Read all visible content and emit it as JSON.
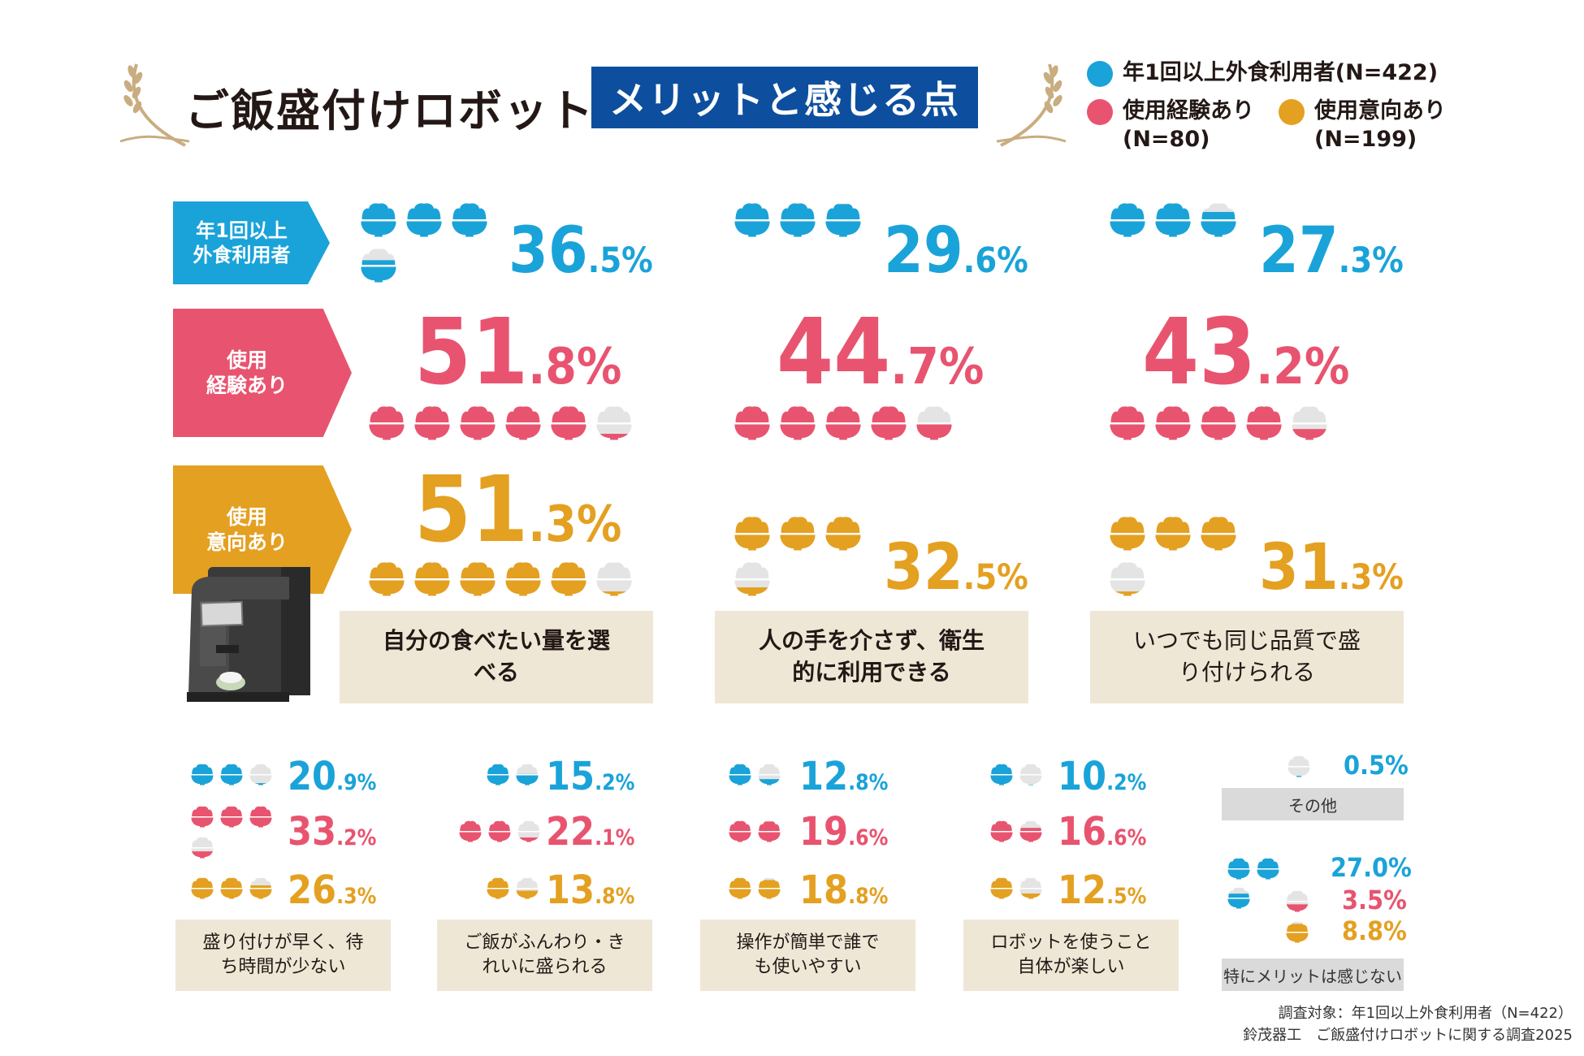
{
  "title": "ご飯盛付けロボット",
  "subtitle": "メリットと感じる点",
  "legend": [
    {
      "label": "年1回以上外食利用者(N=422)",
      "color": "#1aa3d9"
    },
    {
      "label": "使用経験あり",
      "n": "(N=80)",
      "color": "#e8546f"
    },
    {
      "label": "使用意向あり",
      "n": "(N=199)",
      "color": "#e4a021"
    }
  ],
  "row_labels": {
    "blue": "年1回以上\n外食利用者",
    "red": "使用\n経験あり",
    "gold": "使用\n意向あり"
  },
  "colors": {
    "blue": "#1aa3d9",
    "red": "#e8546f",
    "gold": "#e4a021",
    "empty": "#e4e4e4"
  },
  "chart_data": {
    "type": "pictogram",
    "title": "ご飯盛付けロボット メリットと感じる点",
    "unit": "%",
    "icon_value": 10,
    "series_names": [
      "年1回以上外食利用者(N=422)",
      "使用経験あり(N=80)",
      "使用意向あり(N=199)"
    ],
    "top_items": [
      {
        "category": "自分の食べたい量を選べる",
        "blue": {
          "int": "36",
          "dec": ".5%",
          "value": 36.5
        },
        "red": {
          "int": "51",
          "dec": ".8%",
          "value": 51.8
        },
        "gold": {
          "int": "51",
          "dec": ".3%",
          "value": 51.3
        }
      },
      {
        "category": "人の手を介さず、衛生的に利用できる",
        "blue": {
          "int": "29",
          "dec": ".6%",
          "value": 29.6
        },
        "red": {
          "int": "44",
          "dec": ".7%",
          "value": 44.7
        },
        "gold": {
          "int": "32",
          "dec": ".5%",
          "value": 32.5
        }
      },
      {
        "category": "いつでも同じ品質で盛り付けられる",
        "blue": {
          "int": "27",
          "dec": ".3%",
          "value": 27.3
        },
        "red": {
          "int": "43",
          "dec": ".2%",
          "value": 43.2
        },
        "gold": {
          "int": "31",
          "dec": ".3%",
          "value": 31.3
        }
      }
    ],
    "bottom_items": [
      {
        "category": "盛り付けが早く、待ち時間が少ない",
        "blue": {
          "int": "20",
          "dec": ".9%",
          "value": 20.9
        },
        "red": {
          "int": "33",
          "dec": ".2%",
          "value": 33.2
        },
        "gold": {
          "int": "26",
          "dec": ".3%",
          "value": 26.3
        }
      },
      {
        "category": "ご飯がふんわり・きれいに盛られる",
        "blue": {
          "int": "15",
          "dec": ".2%",
          "value": 15.2
        },
        "red": {
          "int": "22",
          "dec": ".1%",
          "value": 22.1
        },
        "gold": {
          "int": "13",
          "dec": ".8%",
          "value": 13.8
        }
      },
      {
        "category": "操作が簡単で誰でも使いやすい",
        "blue": {
          "int": "12",
          "dec": ".8%",
          "value": 12.8
        },
        "red": {
          "int": "19",
          "dec": ".6%",
          "value": 19.6
        },
        "gold": {
          "int": "18",
          "dec": ".8%",
          "value": 18.8
        }
      },
      {
        "category": "ロボットを使うこと自体が楽しい",
        "blue": {
          "int": "10",
          "dec": ".2%",
          "value": 10.2
        },
        "red": {
          "int": "16",
          "dec": ".6%",
          "value": 16.6
        },
        "gold": {
          "int": "12",
          "dec": ".5%",
          "value": 12.5
        }
      }
    ],
    "other": {
      "category": "その他",
      "blue": {
        "text": "0.5%",
        "value": 0.5
      }
    },
    "no_merit": {
      "category": "特にメリットは感じない",
      "blue": {
        "text": "27.0%",
        "value": 27.0
      },
      "red": {
        "text": "3.5%",
        "value": 3.5
      },
      "gold": {
        "text": "8.8%",
        "value": 8.8
      }
    }
  },
  "footnote": {
    "line1": "調査対象：年1回以上外食利用者（N=422）",
    "line2": "鈴茂器工　ご飯盛付けロボットに関する調査2025"
  }
}
